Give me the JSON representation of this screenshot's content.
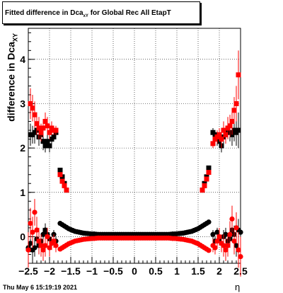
{
  "title": {
    "prefix": "Fitted difference in Dca",
    "sub": "xY",
    "suffix": " for Global Rec All EtapT"
  },
  "ylabel": {
    "prefix": "difference in Dca",
    "sub": "XY"
  },
  "xlabel": "η",
  "footer": "Thu May  6 15:19:19 2021",
  "chart_data": {
    "type": "scatter",
    "title": "Fitted difference in Dca_xY for Global Rec All EtapT",
    "xlabel": "η",
    "ylabel": "difference in Dca_XY",
    "xlim": [
      -2.5,
      2.5
    ],
    "ylim": [
      -0.6,
      4.7
    ],
    "grid": true,
    "xticks": [
      -2.5,
      -2,
      -1.5,
      -1,
      -0.5,
      0,
      0.5,
      1,
      1.5,
      2,
      2.5
    ],
    "xtick_labels": [
      "−2.5",
      "−2",
      "−1.5",
      "−1",
      "−0.5",
      "0",
      "0.5",
      "1",
      "1.5",
      "2",
      "2.5"
    ],
    "yticks": [
      0,
      1,
      2,
      3,
      4
    ],
    "ytick_labels": [
      "0",
      "1",
      "2",
      "3",
      "4"
    ],
    "series": [
      {
        "color": "#000000",
        "marker": "square",
        "x": [
          -2.45,
          -2.4,
          -2.35,
          -2.3,
          -2.25,
          -2.2,
          -2.15,
          -2.1,
          -2.05,
          -2.0,
          -1.95,
          -1.9,
          -1.85,
          -1.75,
          -1.7,
          -1.65,
          -1.6,
          1.6,
          1.65,
          1.7,
          1.75,
          1.85,
          1.9,
          1.95,
          2.0,
          2.05,
          2.1,
          2.15,
          2.2,
          2.25,
          2.3,
          2.35,
          2.4,
          2.45
        ],
        "y": [
          2.3,
          2.3,
          2.35,
          2.4,
          2.25,
          2.3,
          2.15,
          2.05,
          2.15,
          2.05,
          2.2,
          2.25,
          2.35,
          1.5,
          1.35,
          1.2,
          1.05,
          1.05,
          1.2,
          1.35,
          1.55,
          2.35,
          2.3,
          2.2,
          2.15,
          2.05,
          2.25,
          2.3,
          2.4,
          2.35,
          2.3,
          2.4,
          2.35,
          2.4
        ],
        "err": [
          0.25,
          0.2,
          0.25,
          0.2,
          0.2,
          0.2,
          0.2,
          0.15,
          0.15,
          0.15,
          0.15,
          0.1,
          0.1,
          0.05,
          0.05,
          0.05,
          0.05,
          0.05,
          0.05,
          0.05,
          0.05,
          0.1,
          0.1,
          0.15,
          0.15,
          0.15,
          0.15,
          0.2,
          0.2,
          0.2,
          0.25,
          0.25,
          0.3,
          0.4
        ]
      },
      {
        "color": "#ff0000",
        "marker": "square",
        "x": [
          -2.45,
          -2.4,
          -2.35,
          -2.3,
          -2.25,
          -2.2,
          -2.15,
          -2.1,
          -2.05,
          -2.0,
          -1.95,
          -1.9,
          -1.85,
          -1.75,
          -1.7,
          -1.65,
          -1.6,
          1.6,
          1.65,
          1.7,
          1.75,
          1.85,
          1.9,
          1.95,
          2.0,
          2.05,
          2.1,
          2.15,
          2.2,
          2.25,
          2.3,
          2.35,
          2.4,
          2.45
        ],
        "y": [
          3.0,
          2.9,
          2.75,
          2.55,
          2.45,
          2.35,
          2.45,
          2.6,
          2.5,
          2.35,
          2.45,
          2.4,
          2.4,
          1.4,
          1.25,
          1.15,
          1.05,
          1.05,
          1.15,
          1.3,
          1.45,
          2.1,
          2.2,
          2.25,
          2.3,
          2.2,
          2.4,
          2.3,
          2.45,
          2.5,
          2.6,
          2.85,
          3.0,
          3.65
        ],
        "err": [
          0.35,
          0.3,
          0.3,
          0.25,
          0.25,
          0.2,
          0.2,
          0.2,
          0.2,
          0.15,
          0.15,
          0.1,
          0.1,
          0.05,
          0.05,
          0.05,
          0.05,
          0.05,
          0.05,
          0.05,
          0.05,
          0.1,
          0.1,
          0.15,
          0.15,
          0.2,
          0.2,
          0.2,
          0.25,
          0.25,
          0.3,
          0.3,
          0.4,
          0.55
        ]
      },
      {
        "color": "#000000",
        "marker": "circle",
        "x": [
          -2.5,
          -2.45,
          -2.4,
          -2.35,
          -2.3,
          -2.25,
          -2.2,
          -2.15,
          -2.1,
          -2.05,
          -2.0,
          -1.95,
          -1.9,
          -1.85,
          -1.75,
          -1.7,
          -1.65,
          -1.6,
          -1.55,
          -1.5,
          -1.45,
          -1.4,
          -1.35,
          -1.3,
          -1.25,
          -1.2,
          -1.15,
          -1.1,
          -1.05,
          -1.0,
          -0.95,
          -0.9,
          -0.85,
          -0.8,
          -0.75,
          -0.7,
          -0.65,
          -0.6,
          -0.55,
          -0.5,
          -0.45,
          -0.4,
          -0.35,
          -0.3,
          -0.25,
          -0.2,
          -0.15,
          -0.1,
          -0.05,
          0.0,
          0.05,
          0.1,
          0.15,
          0.2,
          0.25,
          0.3,
          0.35,
          0.4,
          0.45,
          0.5,
          0.55,
          0.6,
          0.65,
          0.7,
          0.75,
          0.8,
          0.85,
          0.9,
          0.95,
          1.0,
          1.05,
          1.1,
          1.15,
          1.2,
          1.25,
          1.3,
          1.35,
          1.4,
          1.45,
          1.5,
          1.55,
          1.6,
          1.65,
          1.7,
          1.75,
          1.85,
          1.9,
          1.95,
          2.0,
          2.05,
          2.1,
          2.15,
          2.2,
          2.25,
          2.3,
          2.35,
          2.4,
          2.45,
          2.5
        ],
        "y": [
          -0.25,
          -0.15,
          -0.3,
          -0.25,
          -0.05,
          -0.2,
          -0.1,
          0.05,
          0.15,
          0.05,
          -0.05,
          -0.15,
          0.05,
          -0.1,
          0.3,
          0.27,
          0.24,
          0.21,
          0.18,
          0.16,
          0.14,
          0.12,
          0.11,
          0.1,
          0.09,
          0.08,
          0.075,
          0.07,
          0.065,
          0.06,
          0.06,
          0.055,
          0.05,
          0.05,
          0.05,
          0.05,
          0.05,
          0.05,
          0.05,
          0.05,
          0.05,
          0.05,
          0.05,
          0.05,
          0.05,
          0.05,
          0.05,
          0.05,
          0.05,
          0.05,
          0.05,
          0.05,
          0.05,
          0.05,
          0.05,
          0.05,
          0.05,
          0.05,
          0.05,
          0.05,
          0.05,
          0.05,
          0.05,
          0.05,
          0.05,
          0.05,
          0.055,
          0.06,
          0.06,
          0.065,
          0.07,
          0.075,
          0.08,
          0.09,
          0.1,
          0.11,
          0.12,
          0.14,
          0.16,
          0.18,
          0.21,
          0.24,
          0.27,
          0.3,
          0.33,
          0.05,
          -0.1,
          0.1,
          -0.05,
          -0.15,
          0.0,
          0.05,
          -0.1,
          -0.05,
          0.15,
          0.05,
          -0.2,
          0.15,
          0.1
        ],
        "err": [
          0.25,
          0.2,
          0.25,
          0.2,
          0.2,
          0.2,
          0.15,
          0.15,
          0.15,
          0.15,
          0.1,
          0.1,
          0.1,
          0.1,
          0.03,
          0.03,
          0.03,
          0.03,
          0.03,
          0.03,
          0.03,
          0.03,
          0.03,
          0.03,
          0.03,
          0.03,
          0.03,
          0.03,
          0.03,
          0.03,
          0.03,
          0.03,
          0.03,
          0.03,
          0.03,
          0.03,
          0.03,
          0.03,
          0.03,
          0.03,
          0.03,
          0.03,
          0.03,
          0.03,
          0.03,
          0.03,
          0.03,
          0.03,
          0.03,
          0.03,
          0.03,
          0.03,
          0.03,
          0.03,
          0.03,
          0.03,
          0.03,
          0.03,
          0.03,
          0.03,
          0.03,
          0.03,
          0.03,
          0.03,
          0.03,
          0.03,
          0.03,
          0.03,
          0.03,
          0.03,
          0.03,
          0.03,
          0.03,
          0.03,
          0.03,
          0.03,
          0.03,
          0.03,
          0.03,
          0.03,
          0.03,
          0.03,
          0.03,
          0.03,
          0.03,
          0.1,
          0.1,
          0.1,
          0.15,
          0.15,
          0.15,
          0.15,
          0.15,
          0.2,
          0.2,
          0.2,
          0.25,
          0.25,
          0.3
        ]
      },
      {
        "color": "#ff0000",
        "marker": "circle",
        "x": [
          -2.5,
          -2.45,
          -2.4,
          -2.35,
          -2.3,
          -2.25,
          -2.2,
          -2.15,
          -2.1,
          -2.05,
          -2.0,
          -1.95,
          -1.9,
          -1.85,
          -1.75,
          -1.7,
          -1.65,
          -1.6,
          -1.55,
          -1.5,
          -1.45,
          -1.4,
          -1.35,
          -1.3,
          -1.25,
          -1.2,
          -1.15,
          -1.1,
          -1.05,
          -1.0,
          -0.95,
          -0.9,
          -0.85,
          -0.8,
          -0.75,
          -0.7,
          -0.65,
          -0.6,
          -0.55,
          -0.5,
          -0.45,
          -0.4,
          -0.35,
          -0.3,
          -0.25,
          -0.2,
          -0.15,
          -0.1,
          -0.05,
          0.0,
          0.05,
          0.1,
          0.15,
          0.2,
          0.25,
          0.3,
          0.35,
          0.4,
          0.45,
          0.5,
          0.55,
          0.6,
          0.65,
          0.7,
          0.75,
          0.8,
          0.85,
          0.9,
          0.95,
          1.0,
          1.05,
          1.1,
          1.15,
          1.2,
          1.25,
          1.3,
          1.35,
          1.4,
          1.45,
          1.5,
          1.55,
          1.6,
          1.65,
          1.7,
          1.75,
          1.85,
          1.9,
          1.95,
          2.0,
          2.05,
          2.1,
          2.15,
          2.2,
          2.25,
          2.3,
          2.35,
          2.4,
          2.45,
          2.5
        ],
        "y": [
          -0.3,
          0.3,
          0.1,
          0.55,
          0.15,
          -0.1,
          -0.2,
          -0.3,
          -0.2,
          0.0,
          -0.25,
          -0.15,
          -0.1,
          -0.2,
          -0.28,
          -0.25,
          -0.22,
          -0.19,
          -0.16,
          -0.14,
          -0.12,
          -0.1,
          -0.09,
          -0.08,
          -0.07,
          -0.06,
          -0.055,
          -0.05,
          -0.045,
          -0.04,
          -0.04,
          -0.035,
          -0.03,
          -0.03,
          -0.03,
          -0.03,
          -0.03,
          -0.03,
          -0.03,
          -0.03,
          -0.03,
          -0.03,
          -0.03,
          -0.03,
          -0.03,
          -0.03,
          -0.03,
          -0.03,
          -0.03,
          -0.03,
          -0.03,
          -0.03,
          -0.03,
          -0.03,
          -0.03,
          -0.03,
          -0.03,
          -0.03,
          -0.03,
          -0.03,
          -0.03,
          -0.03,
          -0.03,
          -0.03,
          -0.03,
          -0.03,
          -0.035,
          -0.04,
          -0.04,
          -0.045,
          -0.05,
          -0.055,
          -0.06,
          -0.07,
          -0.08,
          -0.09,
          -0.1,
          -0.12,
          -0.14,
          -0.16,
          -0.19,
          -0.22,
          -0.25,
          -0.28,
          -0.31,
          -0.2,
          -0.25,
          -0.1,
          0.0,
          -0.15,
          -0.2,
          -0.3,
          -0.2,
          0.05,
          0.4,
          -0.1,
          0.2,
          -0.3,
          -0.45
        ],
        "err": [
          0.4,
          0.35,
          0.35,
          0.3,
          0.3,
          0.3,
          0.25,
          0.25,
          0.25,
          0.2,
          0.2,
          0.15,
          0.15,
          0.15,
          0.03,
          0.03,
          0.03,
          0.03,
          0.03,
          0.03,
          0.03,
          0.03,
          0.03,
          0.03,
          0.03,
          0.03,
          0.03,
          0.03,
          0.03,
          0.03,
          0.03,
          0.03,
          0.03,
          0.03,
          0.03,
          0.03,
          0.03,
          0.03,
          0.03,
          0.03,
          0.03,
          0.03,
          0.03,
          0.03,
          0.03,
          0.03,
          0.03,
          0.03,
          0.03,
          0.03,
          0.03,
          0.03,
          0.03,
          0.03,
          0.03,
          0.03,
          0.03,
          0.03,
          0.03,
          0.03,
          0.03,
          0.03,
          0.03,
          0.03,
          0.03,
          0.03,
          0.03,
          0.03,
          0.03,
          0.03,
          0.03,
          0.03,
          0.03,
          0.03,
          0.03,
          0.03,
          0.03,
          0.03,
          0.03,
          0.03,
          0.03,
          0.03,
          0.03,
          0.03,
          0.03,
          0.15,
          0.15,
          0.15,
          0.2,
          0.2,
          0.25,
          0.25,
          0.25,
          0.3,
          0.3,
          0.3,
          0.35,
          0.4,
          0.45
        ]
      }
    ]
  }
}
